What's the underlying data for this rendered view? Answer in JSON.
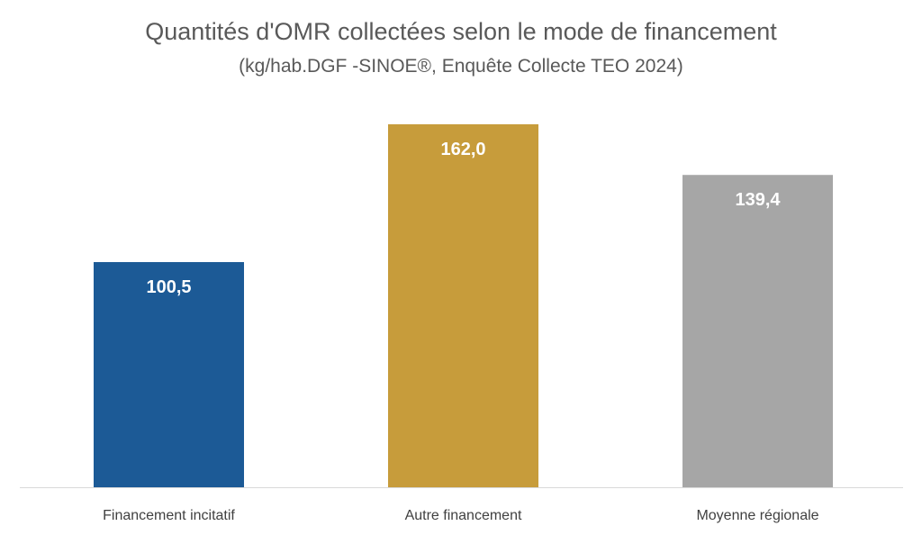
{
  "chart_data": {
    "type": "bar",
    "title": "Quantités d'OMR collectées selon le mode de financement",
    "subtitle": "(kg/hab.DGF -SINOE®, Enquête Collecte TEO 2024)",
    "categories": [
      "Financement incitatif",
      "Autre financement",
      "Moyenne régionale"
    ],
    "values": [
      100.5,
      162.0,
      139.4
    ],
    "data_labels": [
      "100,5",
      "162,0",
      "139,4"
    ],
    "colors": [
      "#1c5a96",
      "#c79c3b",
      "#a6a6a6"
    ],
    "xlabel": "",
    "ylabel": "",
    "ylim": [
      0,
      175
    ],
    "grid": false,
    "legend": "none"
  }
}
